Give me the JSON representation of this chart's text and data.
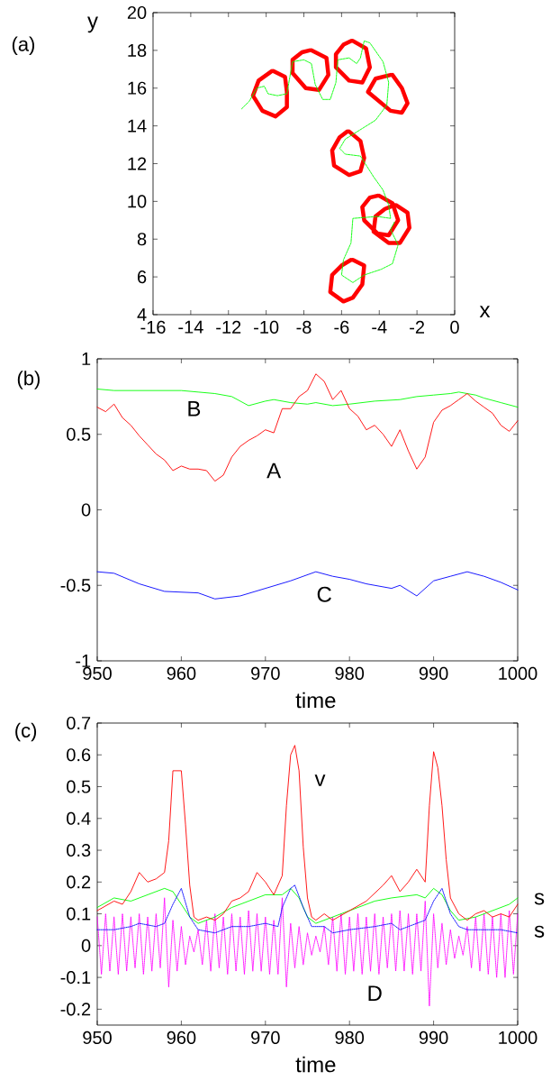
{
  "chart_data": [
    {
      "type": "line",
      "title": "(a)",
      "xlabel": "x",
      "ylabel": "y",
      "xlim": [
        -16,
        0
      ],
      "ylim": [
        4,
        20
      ],
      "xticks": [
        -16,
        -14,
        -12,
        -10,
        -8,
        -6,
        -4,
        -2,
        0
      ],
      "yticks": [
        4,
        6,
        8,
        10,
        12,
        14,
        16,
        18,
        20
      ],
      "series": [
        {
          "color": "#ff0000",
          "x": [
            -9.6,
            -9.0,
            -8.9,
            -8.9,
            -9.5,
            -10.2,
            -10.7,
            -10.4,
            -9.7
          ],
          "values": [
            16.9,
            16.6,
            15.8,
            15.0,
            14.5,
            14.8,
            15.6,
            16.4,
            16.9
          ]
        },
        {
          "color": "#ff0000",
          "x": [
            -7.6,
            -6.8,
            -6.7,
            -7.2,
            -7.9,
            -8.6,
            -8.6,
            -8.1,
            -7.7
          ],
          "values": [
            18.0,
            17.6,
            16.7,
            15.9,
            16.0,
            16.8,
            17.5,
            17.9,
            18.0
          ]
        },
        {
          "color": "#ff0000",
          "x": [
            -5.4,
            -4.7,
            -4.5,
            -4.9,
            -5.6,
            -6.3,
            -6.3,
            -5.9,
            -5.5
          ],
          "values": [
            18.5,
            18.1,
            17.1,
            16.3,
            16.4,
            17.1,
            17.8,
            18.3,
            18.5
          ]
        },
        {
          "color": "#ff0000",
          "x": [
            -3.3,
            -2.8,
            -2.5,
            -2.8,
            -3.4,
            -4.0,
            -4.6,
            -4.2,
            -3.4
          ],
          "values": [
            16.7,
            16.0,
            15.2,
            14.7,
            14.8,
            15.3,
            15.8,
            16.5,
            16.7
          ]
        },
        {
          "color": "#ff0000",
          "x": [
            -5.6,
            -5.0,
            -4.8,
            -5.0,
            -5.6,
            -6.4,
            -6.5,
            -6.1,
            -5.7
          ],
          "values": [
            13.7,
            13.2,
            12.3,
            11.6,
            11.4,
            11.9,
            12.7,
            13.4,
            13.7
          ]
        },
        {
          "color": "#ff0000",
          "x": [
            -4.0,
            -3.3,
            -3.0,
            -3.5,
            -4.1,
            -4.8,
            -4.9,
            -4.5,
            -4.1
          ],
          "values": [
            10.3,
            9.9,
            9.0,
            8.2,
            8.3,
            9.0,
            9.7,
            10.2,
            10.3
          ]
        },
        {
          "color": "#ff0000",
          "x": [
            -3.1,
            -2.5,
            -2.4,
            -2.9,
            -3.5,
            -4.3,
            -4.2,
            -3.7,
            -3.2
          ],
          "values": [
            9.8,
            9.4,
            8.6,
            7.8,
            7.8,
            8.4,
            9.2,
            9.6,
            9.8
          ]
        },
        {
          "color": "#ff0000",
          "x": [
            -5.4,
            -4.8,
            -4.9,
            -5.4,
            -5.9,
            -6.6,
            -6.5,
            -6.0,
            -5.5
          ],
          "values": [
            6.9,
            6.6,
            5.6,
            4.9,
            4.7,
            5.2,
            6.1,
            6.6,
            6.9
          ]
        },
        {
          "color": "#00ff00",
          "line_style": "dashed",
          "x": [
            -11.3,
            -10.9,
            -10.5,
            -10.1,
            -9.9,
            -9.4,
            -8.9,
            -8.6,
            -8.0,
            -7.6,
            -7.4,
            -7.0,
            -6.6,
            -6.3,
            -6.2,
            -5.6,
            -5.2,
            -5.0,
            -4.8,
            -4.5,
            -3.8,
            -3.5,
            -3.6,
            -4.2,
            -5.8,
            -6.1,
            -5.8,
            -5.0,
            -4.3,
            -3.8,
            -3.5,
            -3.4,
            -4.1,
            -5.4,
            -5.5,
            -5.9,
            -6.0,
            -5.4,
            -4.8,
            -3.9,
            -3.3,
            -3.0,
            -3.4,
            -3.2
          ],
          "values": [
            14.9,
            15.3,
            16.0,
            16.1,
            15.7,
            15.6,
            15.7,
            17.4,
            17.5,
            17.3,
            16.2,
            15.4,
            15.4,
            16.3,
            17.5,
            17.6,
            17.3,
            17.6,
            18.5,
            18.4,
            17.4,
            16.3,
            15.1,
            14.3,
            13.3,
            12.8,
            12.5,
            12.4,
            11.3,
            10.6,
            9.8,
            9.1,
            9.2,
            9.1,
            7.8,
            6.9,
            6.1,
            5.7,
            6.1,
            6.4,
            6.7,
            7.7,
            8.5,
            8.9
          ]
        }
      ]
    },
    {
      "type": "line",
      "title": "(b)",
      "xlabel": "time",
      "xlim": [
        950,
        1000
      ],
      "ylim": [
        -1,
        1
      ],
      "xticks": [
        950,
        960,
        970,
        980,
        990,
        1000
      ],
      "yticks": [
        -1,
        -0.5,
        0,
        0.5,
        1
      ],
      "series": [
        {
          "name": "B",
          "color": "#00ff00",
          "x": [
            950,
            952,
            954,
            956,
            958,
            960,
            962,
            964,
            966,
            968,
            970,
            971,
            973,
            975,
            976,
            978,
            980,
            983,
            986,
            988,
            990,
            992,
            993,
            995,
            996,
            998,
            1000
          ],
          "values": [
            0.8,
            0.79,
            0.79,
            0.79,
            0.79,
            0.79,
            0.78,
            0.77,
            0.75,
            0.69,
            0.72,
            0.73,
            0.71,
            0.7,
            0.71,
            0.69,
            0.7,
            0.72,
            0.73,
            0.75,
            0.76,
            0.77,
            0.78,
            0.76,
            0.74,
            0.71,
            0.68
          ]
        },
        {
          "name": "A",
          "color": "#ff0000",
          "x": [
            950,
            951,
            952,
            953,
            954,
            955,
            956,
            957,
            958,
            959,
            960,
            961,
            962,
            963,
            964,
            965,
            966,
            967,
            968,
            969,
            970,
            971,
            972,
            973,
            974,
            975,
            976,
            977,
            978,
            979,
            980,
            981,
            982,
            983,
            984,
            985,
            986,
            987,
            988,
            989,
            990,
            991,
            992,
            993,
            994,
            995,
            996,
            997,
            998,
            999,
            1000
          ],
          "values": [
            0.68,
            0.65,
            0.7,
            0.61,
            0.56,
            0.49,
            0.43,
            0.37,
            0.33,
            0.26,
            0.29,
            0.27,
            0.27,
            0.26,
            0.19,
            0.23,
            0.35,
            0.42,
            0.46,
            0.49,
            0.53,
            0.51,
            0.67,
            0.67,
            0.75,
            0.79,
            0.9,
            0.85,
            0.73,
            0.79,
            0.67,
            0.62,
            0.53,
            0.56,
            0.5,
            0.42,
            0.53,
            0.39,
            0.27,
            0.35,
            0.58,
            0.66,
            0.69,
            0.73,
            0.77,
            0.72,
            0.68,
            0.64,
            0.56,
            0.52,
            0.59
          ]
        },
        {
          "name": "C",
          "color": "#0000ff",
          "x": [
            950,
            952,
            955,
            958,
            962,
            964,
            967,
            970,
            973,
            976,
            978,
            980,
            982,
            985,
            986,
            988,
            990,
            992,
            994,
            996,
            998,
            1000
          ],
          "values": [
            -0.41,
            -0.42,
            -0.49,
            -0.54,
            -0.55,
            -0.59,
            -0.57,
            -0.52,
            -0.47,
            -0.41,
            -0.44,
            -0.46,
            -0.49,
            -0.52,
            -0.5,
            -0.57,
            -0.47,
            -0.44,
            -0.41,
            -0.44,
            -0.48,
            -0.53
          ]
        }
      ]
    },
    {
      "type": "line",
      "title": "(c)",
      "xlabel": "time",
      "xlim": [
        950,
        1000
      ],
      "ylim": [
        -0.25,
        0.7
      ],
      "xticks": [
        950,
        960,
        970,
        980,
        990,
        1000
      ],
      "yticks": [
        -0.2,
        -0.1,
        0,
        0.1,
        0.2,
        0.3,
        0.4,
        0.5,
        0.6,
        0.7
      ],
      "series": [
        {
          "name": "D",
          "color": "#ff00ff",
          "line_style": "dotted",
          "x": [
            950,
            950.5,
            951,
            951.5,
            952,
            952.5,
            953,
            953.5,
            954,
            954.5,
            955,
            955.5,
            956,
            956.5,
            957,
            957.5,
            958,
            958.5,
            959,
            959.5,
            960,
            960.5,
            961,
            961.5,
            962,
            962.5,
            963,
            963.5,
            964,
            964.5,
            965,
            965.5,
            966,
            966.5,
            967,
            967.5,
            968,
            968.5,
            969,
            969.5,
            970,
            970.5,
            971,
            971.5,
            972,
            972.5,
            973,
            973.5,
            974,
            974.5,
            975,
            975.5,
            976,
            976.5,
            977,
            977.5,
            978,
            978.5,
            979,
            979.5,
            980,
            980.5,
            981,
            981.5,
            982,
            982.5,
            983,
            983.5,
            984,
            984.5,
            985,
            985.5,
            986,
            986.5,
            987,
            987.5,
            988,
            988.5,
            989,
            989.5,
            990,
            990.5,
            991,
            991.5,
            992,
            992.5,
            993,
            993.5,
            994,
            994.5,
            995,
            995.5,
            996,
            996.5,
            997,
            997.5,
            998,
            998.5,
            999,
            999.5,
            1000
          ],
          "values": [
            0.09,
            -0.09,
            0.1,
            -0.08,
            0.09,
            -0.09,
            0.1,
            -0.08,
            0.09,
            -0.07,
            0.1,
            -0.09,
            0.09,
            -0.08,
            0.1,
            -0.07,
            0.15,
            -0.13,
            0.08,
            -0.08,
            0.06,
            -0.06,
            0.03,
            -0.02,
            0.05,
            -0.06,
            0.08,
            -0.08,
            0.1,
            -0.07,
            0.09,
            -0.09,
            0.1,
            -0.08,
            0.09,
            -0.09,
            0.11,
            -0.08,
            0.1,
            -0.08,
            0.09,
            -0.09,
            0.08,
            -0.09,
            0.15,
            -0.13,
            0.07,
            -0.07,
            0.06,
            -0.06,
            0.04,
            -0.03,
            0.03,
            -0.02,
            0.06,
            -0.06,
            0.09,
            -0.08,
            0.1,
            -0.09,
            0.09,
            -0.08,
            0.1,
            -0.09,
            0.09,
            -0.08,
            0.1,
            -0.09,
            0.09,
            -0.07,
            0.1,
            -0.08,
            0.11,
            -0.08,
            0.1,
            -0.09,
            0.1,
            -0.08,
            0.14,
            -0.19,
            0.1,
            -0.07,
            0.07,
            -0.06,
            0.05,
            -0.04,
            0.03,
            -0.03,
            0.06,
            -0.07,
            0.09,
            -0.08,
            0.1,
            -0.09,
            0.09,
            -0.1,
            0.1,
            -0.1,
            0.11,
            -0.09,
            0.1
          ]
        },
        {
          "name": "s",
          "color": "#00ff00",
          "x": [
            950,
            952,
            954,
            956,
            958,
            959,
            960,
            961,
            962,
            964,
            966,
            968,
            970,
            972,
            973,
            974,
            975,
            976,
            978,
            980,
            983,
            985,
            988,
            989,
            990,
            991,
            992,
            993,
            995,
            997,
            999,
            1000
          ],
          "values": [
            0.12,
            0.15,
            0.14,
            0.16,
            0.18,
            0.17,
            0.13,
            0.09,
            0.07,
            0.09,
            0.12,
            0.14,
            0.16,
            0.16,
            0.18,
            0.15,
            0.09,
            0.07,
            0.09,
            0.11,
            0.14,
            0.15,
            0.16,
            0.15,
            0.18,
            0.16,
            0.11,
            0.08,
            0.09,
            0.11,
            0.13,
            0.15
          ]
        },
        {
          "name": "s",
          "color": "#0000ff",
          "line_style": "dotted",
          "x": [
            950,
            952,
            954,
            955,
            957,
            958,
            959,
            960,
            961,
            962,
            964,
            966,
            968,
            970,
            971.5,
            972,
            973,
            973.5,
            974.5,
            975.5,
            977,
            978,
            980,
            983,
            985,
            986,
            988,
            989,
            990,
            991,
            992,
            993,
            994,
            996,
            998,
            1000
          ],
          "values": [
            0.05,
            0.05,
            0.06,
            0.07,
            0.06,
            0.07,
            0.13,
            0.18,
            0.09,
            0.05,
            0.04,
            0.06,
            0.06,
            0.07,
            0.06,
            0.12,
            0.18,
            0.19,
            0.12,
            0.06,
            0.06,
            0.04,
            0.05,
            0.06,
            0.07,
            0.05,
            0.07,
            0.08,
            0.14,
            0.18,
            0.1,
            0.06,
            0.05,
            0.05,
            0.05,
            0.04
          ]
        },
        {
          "name": "v",
          "color": "#ff0000",
          "x": [
            950,
            952,
            953,
            954,
            955,
            956,
            957,
            958,
            958.5,
            959,
            960,
            960.5,
            961,
            961.5,
            962,
            963,
            964,
            965,
            966,
            967,
            968,
            969,
            970,
            971,
            972,
            972.5,
            973,
            973.5,
            974,
            974.5,
            975,
            975.5,
            976,
            977,
            978,
            980,
            982,
            984,
            985,
            986,
            987,
            988,
            989,
            989.5,
            990,
            990.5,
            991,
            991.5,
            992,
            993,
            994,
            995,
            996,
            997,
            998,
            999,
            1000
          ],
          "values": [
            0.11,
            0.14,
            0.13,
            0.17,
            0.23,
            0.2,
            0.21,
            0.23,
            0.33,
            0.55,
            0.55,
            0.38,
            0.19,
            0.09,
            0.08,
            0.09,
            0.08,
            0.1,
            0.14,
            0.15,
            0.17,
            0.23,
            0.2,
            0.16,
            0.22,
            0.44,
            0.6,
            0.63,
            0.55,
            0.31,
            0.15,
            0.09,
            0.08,
            0.1,
            0.08,
            0.11,
            0.14,
            0.19,
            0.22,
            0.17,
            0.2,
            0.24,
            0.2,
            0.44,
            0.61,
            0.56,
            0.44,
            0.27,
            0.15,
            0.1,
            0.08,
            0.1,
            0.11,
            0.09,
            0.1,
            0.09,
            0.13
          ]
        }
      ]
    }
  ]
}
